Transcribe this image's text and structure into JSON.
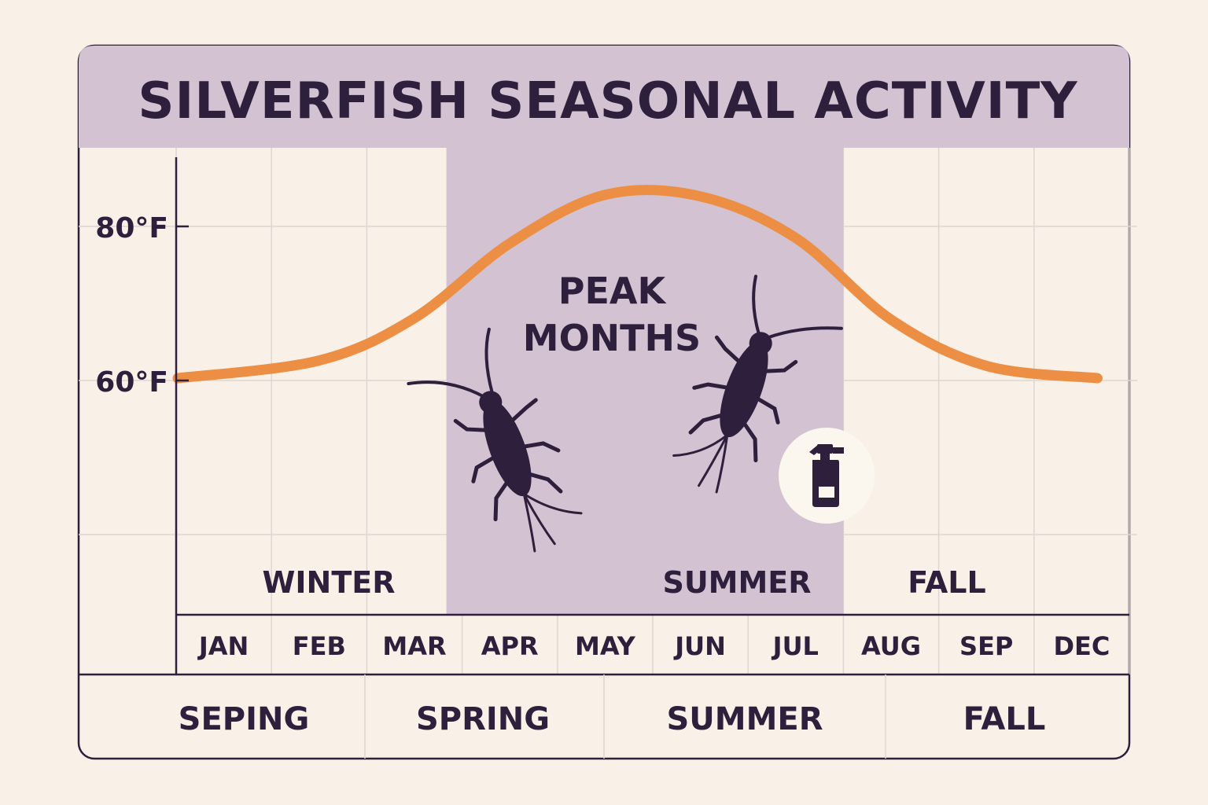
{
  "chart_data": {
    "type": "line",
    "title": "SILVERFISH SEASONAL ACTIVITY",
    "categories": [
      "JAN",
      "FEB",
      "MAR",
      "APR",
      "MAY",
      "JUN",
      "JUL",
      "AUG",
      "SEP",
      "DEC"
    ],
    "series": [
      {
        "values": [
          60.3,
          62.6,
          68.1,
          77.8,
          84.1,
          83.9,
          78.5,
          67.9,
          61.9,
          60.3
        ],
        "color": "#ec8f45"
      }
    ],
    "y_ticks": [
      {
        "value": 80,
        "label": "80°F"
      },
      {
        "value": 60,
        "label": "60°F"
      }
    ],
    "ylim": [
      50,
      90
    ],
    "grid": true,
    "highlight": {
      "from": "APR",
      "to": "JUL",
      "label_lines": [
        "PEAK",
        "MONTHS"
      ],
      "color": "#d3c2d1"
    },
    "season_labels": [
      {
        "text": "WINTER",
        "at": "FEB"
      },
      {
        "text": "SUMMER",
        "at": "JUN"
      },
      {
        "text": "FALL",
        "at": "AUG"
      }
    ],
    "bottom_seasons": [
      "SEPING",
      "SPRING",
      "SUMMER",
      "FALL"
    ],
    "icons": [
      "silverfish-icon",
      "silverfish-icon",
      "spray-bottle-icon"
    ]
  },
  "colors": {
    "background": "#f9f1e7",
    "header": "#d3c2d1",
    "ink": "#2e1f3c",
    "grid": "#ddd6d2",
    "line": "#ec8f45"
  }
}
